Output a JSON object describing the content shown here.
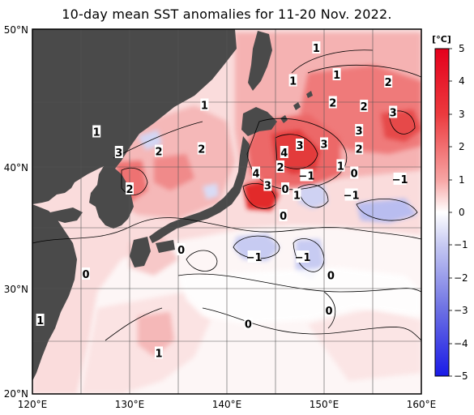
{
  "title": "10-day mean SST anomalies for 11-20 Nov. 2022.",
  "map": {
    "lon_ticks": [
      "120°E",
      "130°E",
      "140°E",
      "150°E",
      "160°E"
    ],
    "lat_ticks": [
      "50°N",
      "40°N",
      "30°N",
      "20°N"
    ],
    "lon_range": [
      120,
      160
    ],
    "lat_range": [
      20,
      50
    ],
    "land_color": "#4a4a4a",
    "grid": true
  },
  "colorbar": {
    "unit": "[°C]",
    "ticks": [
      "5",
      "4",
      "3",
      "2",
      "1",
      "0",
      "−1",
      "−2",
      "−3",
      "−4",
      "−5"
    ],
    "range": [
      -5,
      5
    ]
  },
  "contour_labels": [
    {
      "text": "1",
      "lon": 149.2,
      "lat": 48.4
    },
    {
      "text": "1",
      "lon": 151.3,
      "lat": 46.2
    },
    {
      "text": "1",
      "lon": 146.8,
      "lat": 45.7
    },
    {
      "text": "2",
      "lon": 156.6,
      "lat": 45.6
    },
    {
      "text": "2",
      "lon": 150.9,
      "lat": 43.9
    },
    {
      "text": "2",
      "lon": 154.1,
      "lat": 43.6
    },
    {
      "text": "3",
      "lon": 157.1,
      "lat": 43.1
    },
    {
      "text": "3",
      "lon": 153.6,
      "lat": 41.6
    },
    {
      "text": "1",
      "lon": 126.6,
      "lat": 41.5
    },
    {
      "text": "1",
      "lon": 137.7,
      "lat": 43.7
    },
    {
      "text": "3",
      "lon": 128.9,
      "lat": 39.8
    },
    {
      "text": "2",
      "lon": 133.0,
      "lat": 39.9
    },
    {
      "text": "2",
      "lon": 137.4,
      "lat": 40.1
    },
    {
      "text": "3",
      "lon": 147.5,
      "lat": 40.4
    },
    {
      "text": "3",
      "lon": 150.0,
      "lat": 40.5
    },
    {
      "text": "4",
      "lon": 145.9,
      "lat": 39.8
    },
    {
      "text": "2",
      "lon": 145.5,
      "lat": 38.6
    },
    {
      "text": "4",
      "lon": 143.0,
      "lat": 38.1
    },
    {
      "text": "3",
      "lon": 144.2,
      "lat": 37.1
    },
    {
      "text": "2",
      "lon": 153.6,
      "lat": 40.1
    },
    {
      "text": "1",
      "lon": 151.7,
      "lat": 38.7
    },
    {
      "text": "0",
      "lon": 153.1,
      "lat": 38.1
    },
    {
      "text": "−1",
      "lon": 148.2,
      "lat": 37.9
    },
    {
      "text": "−1",
      "lon": 157.8,
      "lat": 37.6
    },
    {
      "text": "0",
      "lon": 146.0,
      "lat": 36.8
    },
    {
      "text": "1",
      "lon": 147.2,
      "lat": 36.3
    },
    {
      "text": "−1",
      "lon": 152.8,
      "lat": 36.3
    },
    {
      "text": "0",
      "lon": 145.8,
      "lat": 34.6
    },
    {
      "text": "2",
      "lon": 130.0,
      "lat": 36.8
    },
    {
      "text": "0",
      "lon": 135.3,
      "lat": 31.8
    },
    {
      "text": "−1",
      "lon": 142.8,
      "lat": 31.2
    },
    {
      "text": "−1",
      "lon": 147.8,
      "lat": 31.2
    },
    {
      "text": "0",
      "lon": 125.5,
      "lat": 29.8
    },
    {
      "text": "0",
      "lon": 150.7,
      "lat": 29.7
    },
    {
      "text": "0",
      "lon": 150.5,
      "lat": 26.8
    },
    {
      "text": "0",
      "lon": 142.2,
      "lat": 25.7
    },
    {
      "text": "1",
      "lon": 120.8,
      "lat": 26.0
    },
    {
      "text": "1",
      "lon": 133.0,
      "lat": 23.3
    }
  ]
}
